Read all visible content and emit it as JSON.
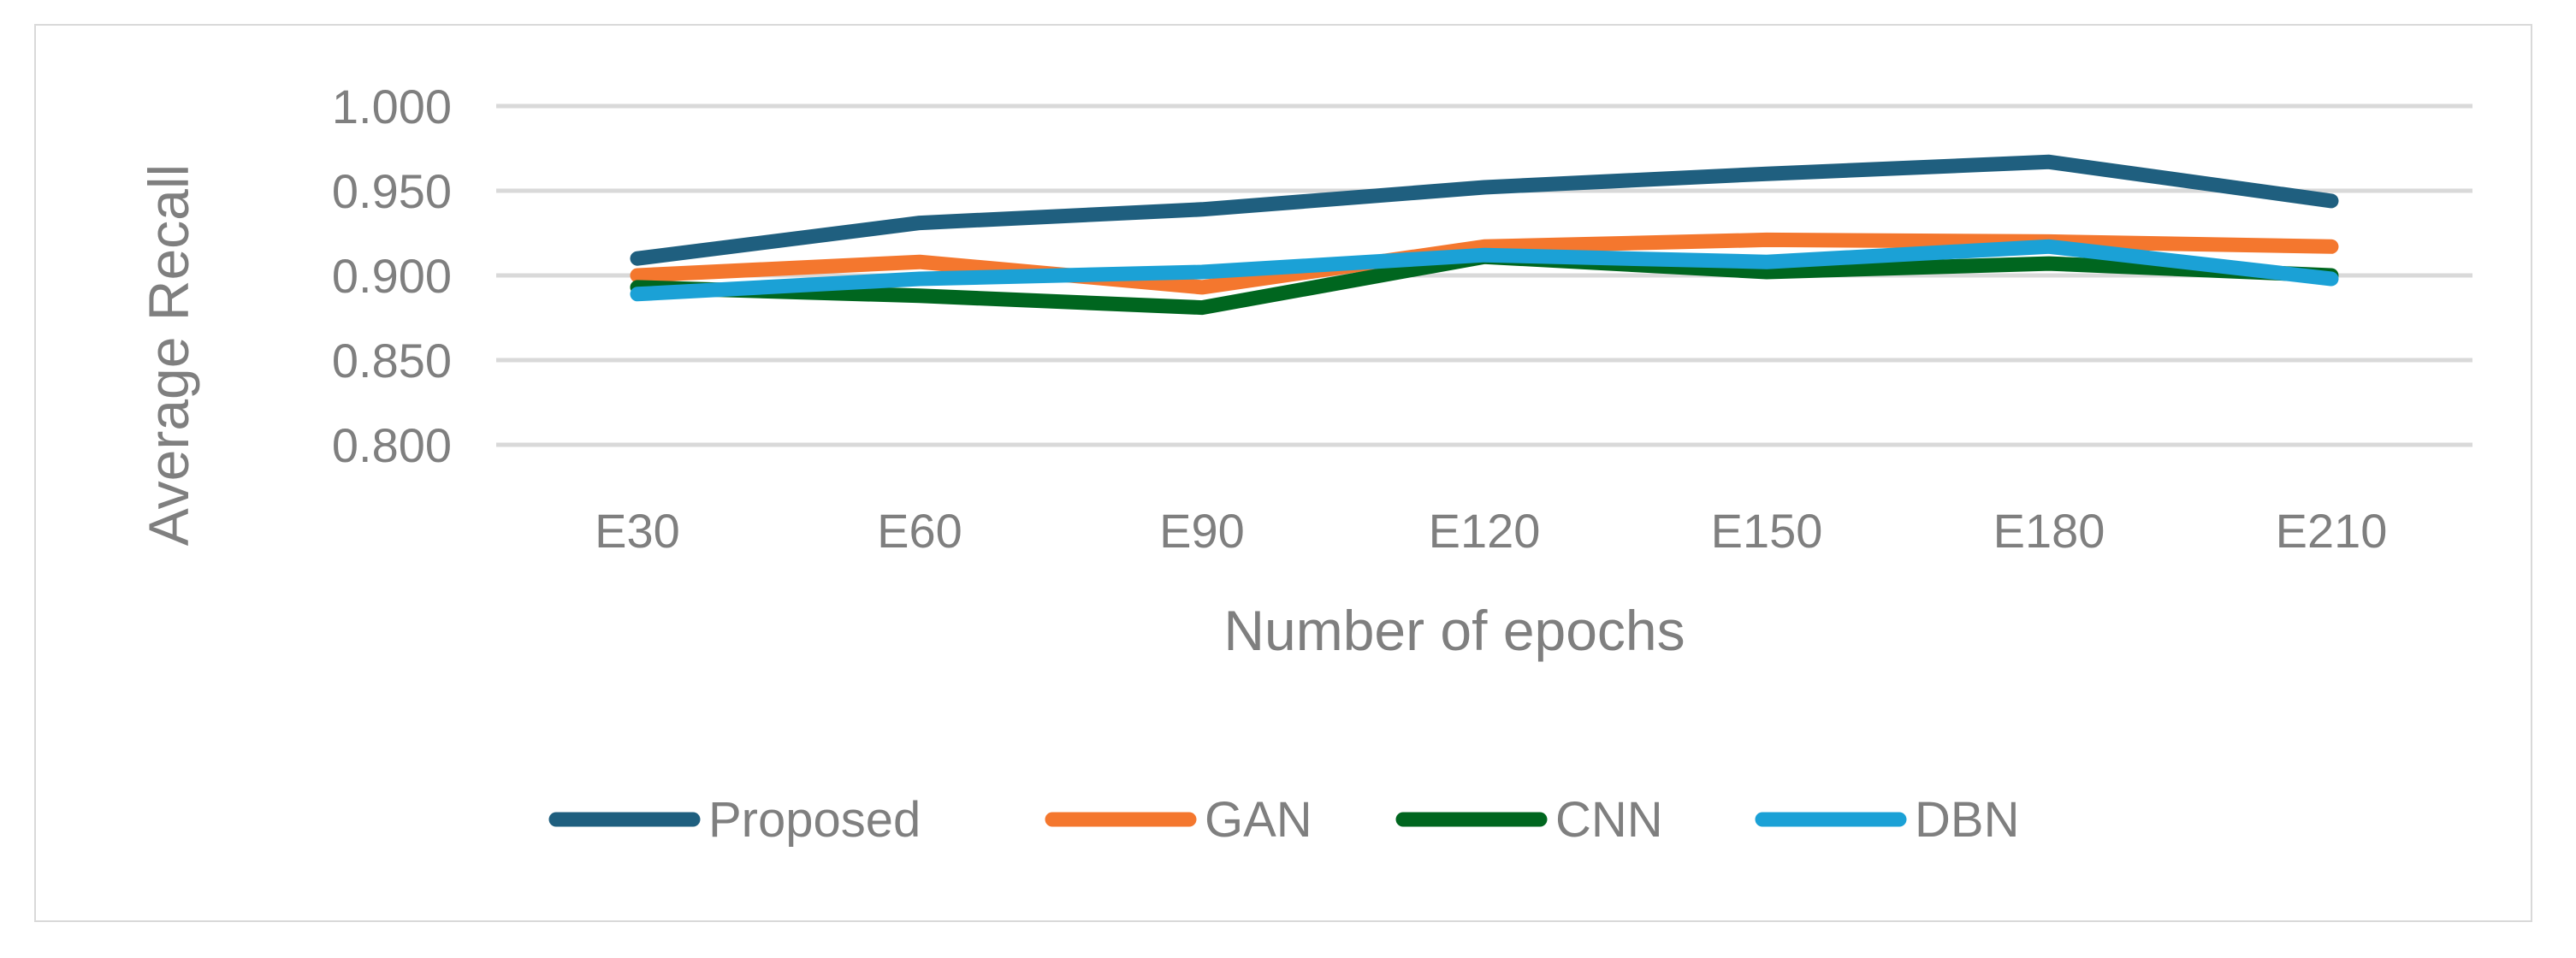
{
  "chart_data": {
    "type": "line",
    "title": "",
    "xlabel": "Number of epochs",
    "ylabel": "Average Recall",
    "categories": [
      "E30",
      "E60",
      "E90",
      "E120",
      "E150",
      "E180",
      "E210"
    ],
    "ylim": [
      0.8,
      1.0
    ],
    "yticks": [
      "0.800",
      "0.850",
      "0.900",
      "0.950",
      "1.000"
    ],
    "grid": "horizontal",
    "legend_position": "bottom",
    "series": [
      {
        "name": "Proposed",
        "color": "#1f5f7f",
        "values": [
          0.91,
          0.931,
          0.939,
          0.952,
          0.96,
          0.967,
          0.944
        ]
      },
      {
        "name": "GAN",
        "color": "#f4772e",
        "values": [
          0.9,
          0.908,
          0.893,
          0.917,
          0.921,
          0.92,
          0.917
        ]
      },
      {
        "name": "CNN",
        "color": "#00661f",
        "values": [
          0.893,
          0.888,
          0.881,
          0.911,
          0.902,
          0.907,
          0.9
        ]
      },
      {
        "name": "DBN",
        "color": "#1ba1d6",
        "values": [
          0.889,
          0.898,
          0.902,
          0.912,
          0.908,
          0.917,
          0.898
        ]
      }
    ]
  }
}
